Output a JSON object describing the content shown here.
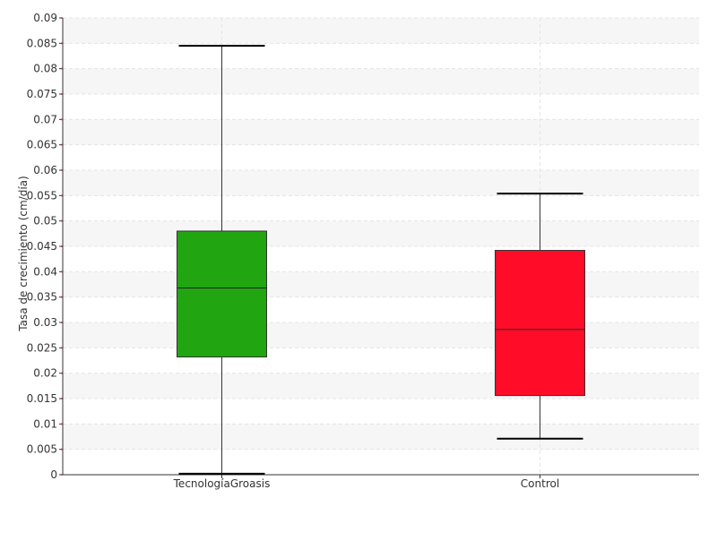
{
  "chart_data": {
    "type": "box",
    "title": "",
    "xlabel": "",
    "ylabel": "Tasa de crecimiento (cm/día)",
    "ylim": [
      0,
      0.09
    ],
    "y_ticks": [
      "0",
      "0.005",
      "0.01",
      "0.015",
      "0.02",
      "0.025",
      "0.03",
      "0.035",
      "0.04",
      "0.045",
      "0.05",
      "0.055",
      "0.06",
      "0.065",
      "0.07",
      "0.075",
      "0.08",
      "0.085",
      "0.09"
    ],
    "categories": [
      "TecnologíaGroasis",
      "Control"
    ],
    "series": [
      {
        "category": "TecnologíaGroasis",
        "color": "#21a511",
        "min": 0.0002,
        "q1": 0.0232,
        "median": 0.0368,
        "q3": 0.048,
        "max": 0.0845
      },
      {
        "category": "Control",
        "color": "#ff0c29",
        "min": 0.0071,
        "q1": 0.0156,
        "median": 0.0286,
        "q3": 0.0442,
        "max": 0.0554
      }
    ],
    "grid": true,
    "band_colors": [
      "#f6f6f6",
      "#ffffff"
    ],
    "legend": "none"
  }
}
